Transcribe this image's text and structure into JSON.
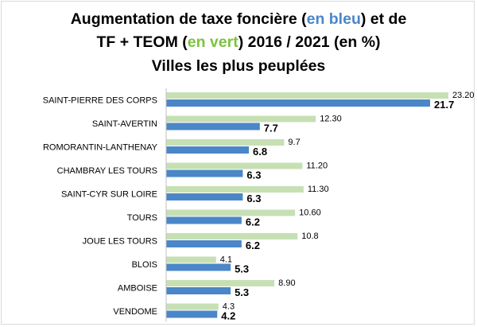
{
  "title": {
    "line1_part1": "Augmentation de taxe foncière (",
    "line1_blue": "en bleu",
    "line1_part2": ")  et de",
    "line2_part1": "TF + TEOM (",
    "line2_green": "en vert",
    "line2_part2": ") 2016 / 2021 (en %)",
    "line3": "Villes les plus peuplées"
  },
  "colors": {
    "tf": "#4a86c8",
    "tf_teom": "#c6e0b4",
    "axis": "#bfbfbf",
    "blue_text": "#4a86c8",
    "green_text": "#7cc242"
  },
  "chart_data": {
    "type": "bar",
    "orientation": "horizontal",
    "title": "Augmentation de taxe foncière (en bleu)  et de TF + TEOM (en vert) 2016 / 2021 (en %) Villes les plus peuplées",
    "categories": [
      "SAINT-PIERRE DES CORPS",
      "SAINT-AVERTIN",
      "ROMORANTIN-LANTHENAY",
      "CHAMBRAY LES TOURS",
      "SAINT-CYR SUR LOIRE",
      "TOURS",
      "JOUE LES TOURS",
      "BLOIS",
      "AMBOISE",
      "VENDOME"
    ],
    "series": [
      {
        "color": "#c6e0b4",
        "values": [
          23.2,
          12.3,
          9.7,
          11.2,
          11.3,
          10.6,
          10.8,
          4.1,
          8.9,
          4.3
        ],
        "labels": [
          "23.20",
          "12.30",
          "9.7",
          "11.20",
          "11.30",
          "10.60",
          "10.8",
          "4.1",
          "8.90",
          "4.3"
        ]
      },
      {
        "color": "#4a86c8",
        "values": [
          21.7,
          7.7,
          6.8,
          6.3,
          6.3,
          6.2,
          6.2,
          5.3,
          5.3,
          4.2
        ],
        "labels": [
          "21.7",
          "7.7",
          "6.8",
          "6.3",
          "6.3",
          "6.2",
          "6.2",
          "5.3",
          "5.3",
          "4.2"
        ]
      }
    ],
    "xlim": [
      0,
      25
    ],
    "grid": false,
    "legend": "none"
  }
}
